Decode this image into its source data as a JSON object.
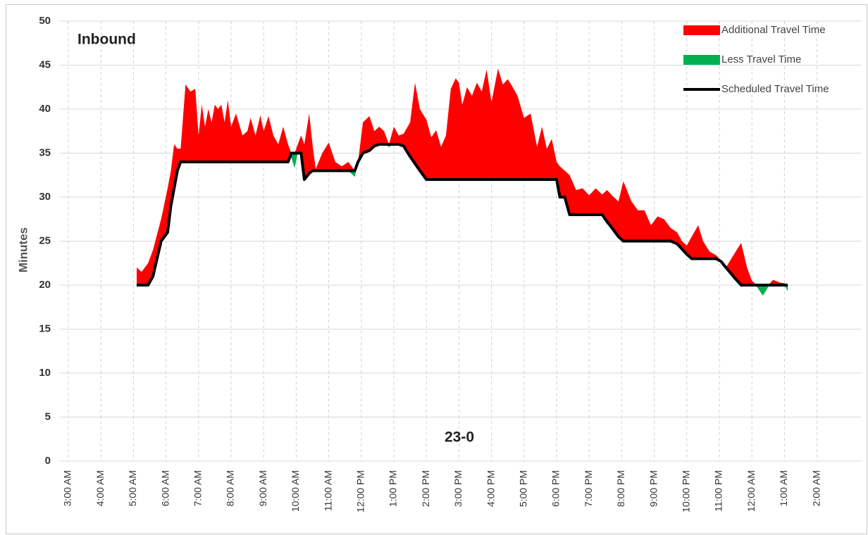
{
  "chart_data": {
    "type": "area-difference",
    "title": "Inbound",
    "annotation": "23-0",
    "y_label": "Minutes",
    "ylim": [
      0,
      50
    ],
    "yticks": [
      0,
      5,
      10,
      15,
      20,
      25,
      30,
      35,
      40,
      45,
      50
    ],
    "xlim": [
      2.74,
      27.35
    ],
    "xticks": [
      {
        "value": 3,
        "label": "3:00 AM"
      },
      {
        "value": 4,
        "label": "4:00 AM"
      },
      {
        "value": 5,
        "label": "5:00 AM"
      },
      {
        "value": 6,
        "label": "6:00 AM"
      },
      {
        "value": 7,
        "label": "7:00 AM"
      },
      {
        "value": 8,
        "label": "8:00 AM"
      },
      {
        "value": 9,
        "label": "9:00 AM"
      },
      {
        "value": 10,
        "label": "10:00 AM"
      },
      {
        "value": 11,
        "label": "11:00 AM"
      },
      {
        "value": 12,
        "label": "12:00 PM"
      },
      {
        "value": 13,
        "label": "1:00 PM"
      },
      {
        "value": 14,
        "label": "2:00 PM"
      },
      {
        "value": 15,
        "label": "3:00 PM"
      },
      {
        "value": 16,
        "label": "4:00 PM"
      },
      {
        "value": 17,
        "label": "5:00 PM"
      },
      {
        "value": 18,
        "label": "6:00 PM"
      },
      {
        "value": 19,
        "label": "7:00 PM"
      },
      {
        "value": 20,
        "label": "8:00 PM"
      },
      {
        "value": 21,
        "label": "9:00 PM"
      },
      {
        "value": 22,
        "label": "10:00 PM"
      },
      {
        "value": 23,
        "label": "11:00 PM"
      },
      {
        "value": 24,
        "label": "12:00 AM"
      },
      {
        "value": 25,
        "label": "1:00 AM"
      },
      {
        "value": 26,
        "label": "2:00 AM"
      }
    ],
    "grid": true,
    "legend": "top-right",
    "x": [
      5.1,
      5.25,
      5.45,
      5.6,
      5.85,
      6.05,
      6.15,
      6.25,
      6.35,
      6.45,
      6.6,
      6.75,
      6.9,
      7.0,
      7.1,
      7.2,
      7.3,
      7.4,
      7.5,
      7.6,
      7.7,
      7.8,
      7.9,
      8.0,
      8.15,
      8.35,
      8.5,
      8.6,
      8.75,
      8.9,
      9.0,
      9.15,
      9.3,
      9.45,
      9.6,
      9.75,
      9.85,
      9.95,
      10.05,
      10.15,
      10.25,
      10.4,
      10.5,
      10.6,
      10.8,
      11.0,
      11.2,
      11.4,
      11.6,
      11.8,
      11.9,
      12.05,
      12.25,
      12.4,
      12.55,
      12.7,
      12.85,
      13.0,
      13.15,
      13.3,
      13.5,
      13.65,
      13.8,
      14.0,
      14.15,
      14.3,
      14.45,
      14.6,
      14.75,
      14.9,
      15.0,
      15.1,
      15.25,
      15.4,
      15.55,
      15.7,
      15.85,
      16.0,
      16.2,
      16.35,
      16.5,
      16.65,
      16.8,
      17.0,
      17.2,
      17.4,
      17.55,
      17.7,
      17.85,
      18.0,
      18.1,
      18.25,
      18.4,
      18.6,
      18.8,
      19.0,
      19.2,
      19.4,
      19.55,
      19.7,
      19.9,
      20.05,
      20.3,
      20.5,
      20.7,
      20.9,
      21.1,
      21.3,
      21.5,
      21.7,
      21.85,
      22.0,
      22.15,
      22.35,
      22.5,
      22.7,
      22.9,
      23.05,
      23.2,
      23.45,
      23.67,
      23.85,
      24.0,
      24.15,
      24.34,
      24.5,
      24.65,
      24.85,
      25.0,
      25.1
    ],
    "actual": [
      22,
      21.5,
      22.5,
      24,
      27.5,
      31,
      33,
      36,
      35.5,
      35.5,
      42.8,
      42,
      42.3,
      37,
      40.5,
      38,
      40,
      38.5,
      40.5,
      40,
      40.5,
      38.5,
      41,
      38,
      39.5,
      37,
      37.5,
      39,
      37,
      39.3,
      37.5,
      39.2,
      37,
      36,
      38,
      36,
      34.5,
      33.3,
      36,
      37,
      36,
      39.5,
      36,
      33.2,
      35,
      36.2,
      34,
      33.5,
      34,
      32.3,
      34,
      38.5,
      39.2,
      37.5,
      38,
      37.5,
      35.7,
      38,
      37,
      37.2,
      38.5,
      43,
      40,
      38.8,
      36.8,
      37.6,
      35.7,
      37,
      42.3,
      43.5,
      43,
      40.5,
      42.5,
      41.5,
      43,
      42,
      44.5,
      40.8,
      44.6,
      42.8,
      43.4,
      42.5,
      41.5,
      39,
      39.5,
      35.7,
      38,
      35.5,
      36.6,
      34,
      33.5,
      33,
      32.5,
      30.8,
      31,
      30.2,
      31,
      30.3,
      30.8,
      30.2,
      29.5,
      31.8,
      29.5,
      28.5,
      28.5,
      26.8,
      27.8,
      27.5,
      26.5,
      26,
      25,
      24.5,
      25.5,
      26.8,
      25,
      23.8,
      23.4,
      22.8,
      22,
      23.5,
      24.8,
      22,
      20.5,
      19.8,
      18.8,
      19.8,
      20.6,
      20.3,
      20.2,
      19.3
    ],
    "areas": [
      {
        "name": "Additional Travel Time",
        "color": "#ff0000"
      },
      {
        "name": "Less Travel Time",
        "color": "#00b050"
      }
    ],
    "series": [
      {
        "name": "Scheduled Travel Time",
        "color": "#000000",
        "values": [
          20,
          20,
          20,
          21,
          25,
          26,
          29,
          31,
          33,
          34,
          34,
          34,
          34,
          34,
          34,
          34,
          34,
          34,
          34,
          34,
          34,
          34,
          34,
          34,
          34,
          34,
          34,
          34,
          34,
          34,
          34,
          34,
          34,
          34,
          34,
          34,
          35,
          35,
          35,
          35,
          32,
          32.7,
          33,
          33,
          33,
          33,
          33,
          33,
          33,
          33,
          34,
          35,
          35.3,
          35.8,
          36,
          36,
          36,
          36,
          36,
          35.8,
          34.6,
          33.8,
          33,
          32,
          32,
          32,
          32,
          32,
          32,
          32,
          32,
          32,
          32,
          32,
          32,
          32,
          32,
          32,
          32,
          32,
          32,
          32,
          32,
          32,
          32,
          32,
          32,
          32,
          32,
          32,
          30,
          30,
          28,
          28,
          28,
          28,
          28,
          28,
          27.2,
          26.5,
          25.5,
          25,
          25,
          25,
          25,
          25,
          25,
          25,
          25,
          24.7,
          24.1,
          23.5,
          23,
          23,
          23,
          23,
          23,
          22.7,
          22,
          20.9,
          20,
          20,
          20,
          20,
          20,
          20,
          20,
          20,
          20,
          20
        ]
      }
    ]
  }
}
